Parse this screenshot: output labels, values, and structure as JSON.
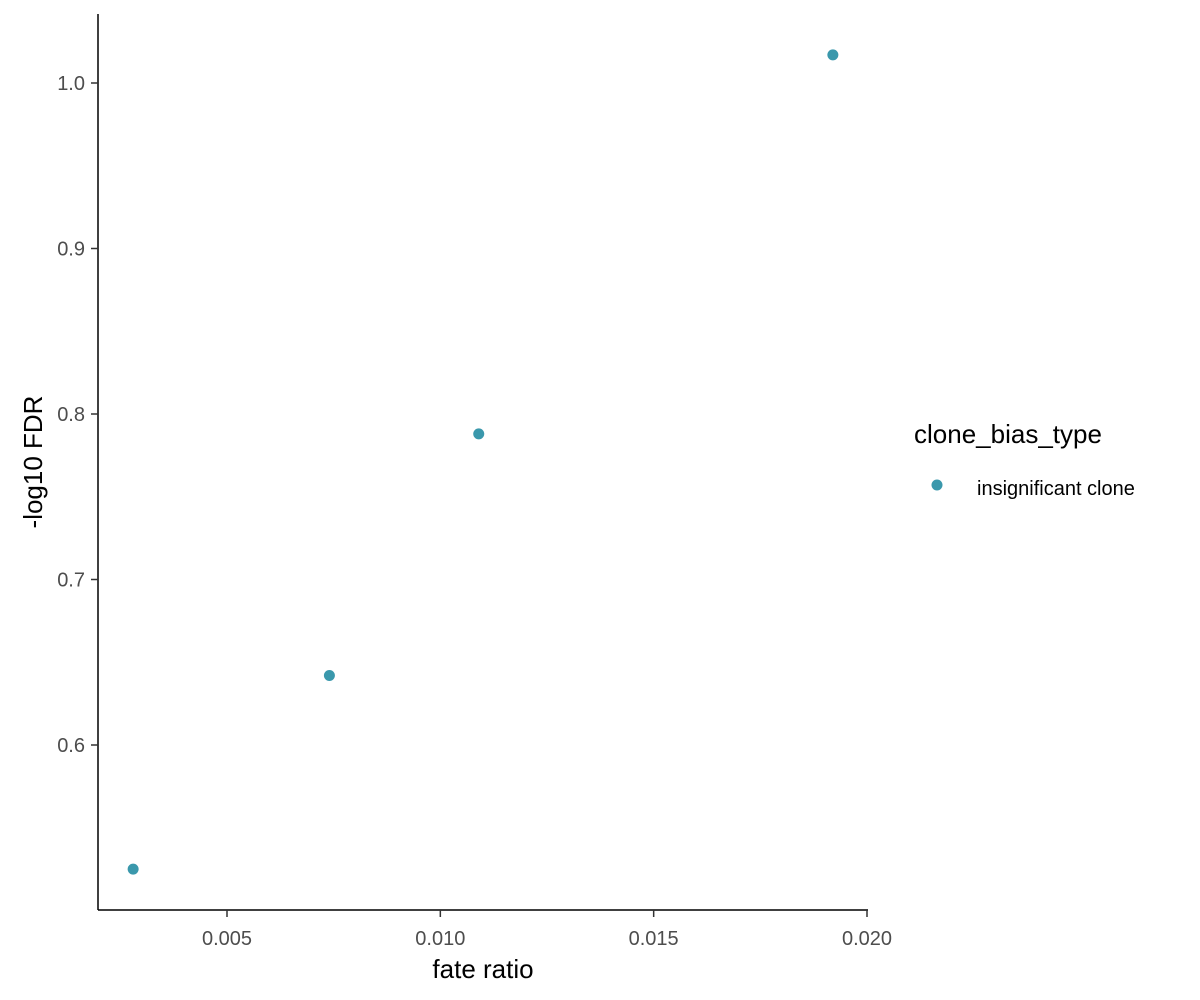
{
  "chart_data": {
    "type": "scatter",
    "xlabel": "fate ratio",
    "ylabel": "-log10 FDR",
    "xlim": [
      0.002,
      0.02
    ],
    "ylim": [
      0.5,
      1.04
    ],
    "x_ticks": [
      {
        "value": 0.005,
        "label": "0.005"
      },
      {
        "value": 0.01,
        "label": "0.010"
      },
      {
        "value": 0.015,
        "label": "0.015"
      },
      {
        "value": 0.02,
        "label": "0.020"
      }
    ],
    "y_ticks": [
      {
        "value": 0.6,
        "label": "0.6"
      },
      {
        "value": 0.7,
        "label": "0.7"
      },
      {
        "value": 0.8,
        "label": "0.8"
      },
      {
        "value": 0.9,
        "label": "0.9"
      },
      {
        "value": 1.0,
        "label": "1.0"
      }
    ],
    "grid": false,
    "legend": {
      "title": "clone_bias_type",
      "placement": "right",
      "entries": [
        {
          "label": "insignificant clone",
          "color": "#3a98ac"
        }
      ]
    },
    "series": [
      {
        "name": "insignificant clone",
        "color": "#3a98ac",
        "points": [
          {
            "x": 0.0028,
            "y": 0.525
          },
          {
            "x": 0.0074,
            "y": 0.642
          },
          {
            "x": 0.0109,
            "y": 0.788
          },
          {
            "x": 0.0192,
            "y": 1.017
          }
        ]
      }
    ]
  }
}
